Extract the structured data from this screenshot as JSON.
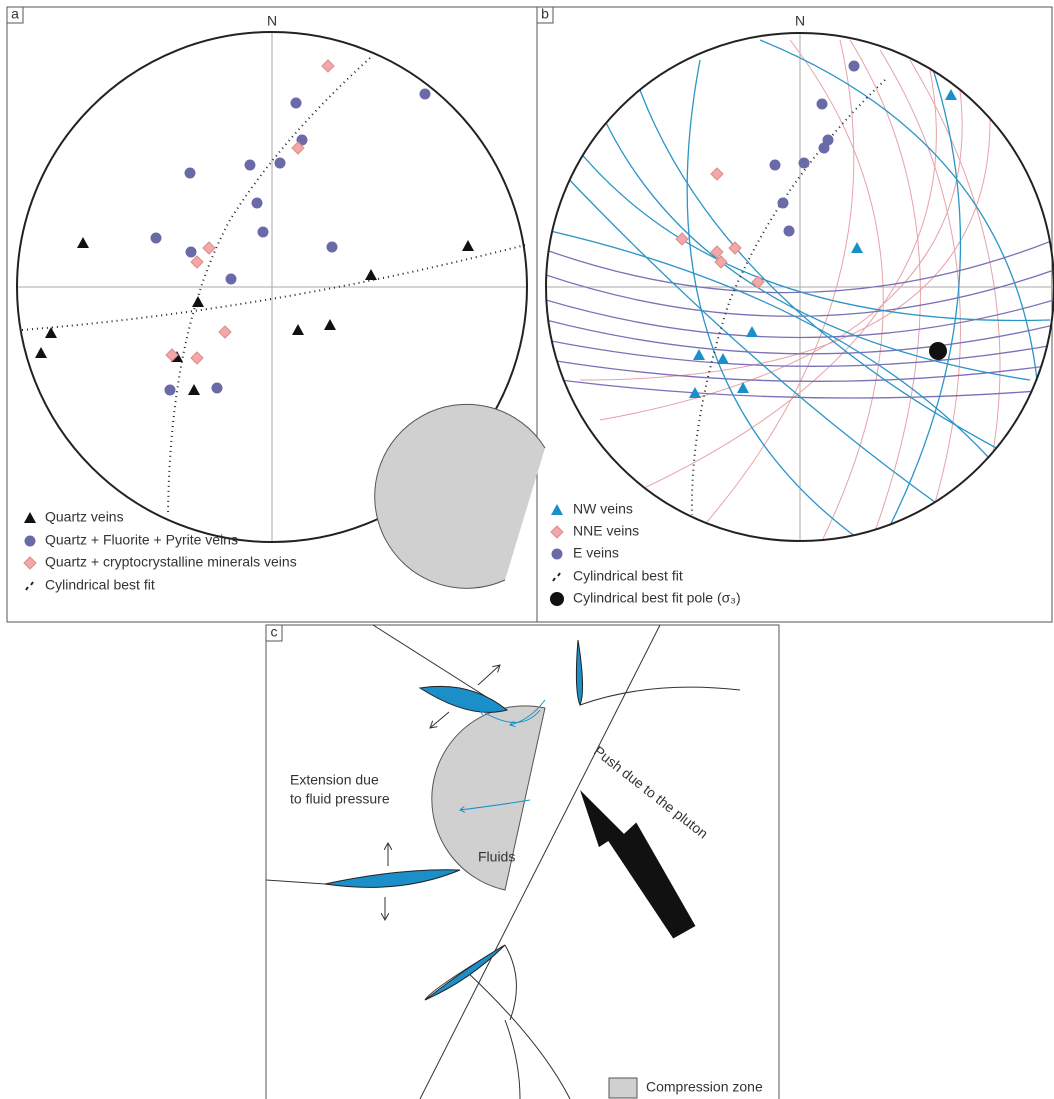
{
  "panel_a": {
    "label": "a",
    "north": "N",
    "legend": [
      "Quartz veins",
      "Quartz + Fluorite + Pyrite veins",
      "Quartz + cryptocrystalline minerals veins",
      "Cylindrical best fit"
    ]
  },
  "panel_b": {
    "label": "b",
    "north": "N",
    "legend": [
      "NW veins",
      "NNE veins",
      "E veins",
      "Cylindrical best fit",
      "Cylindrical best fit pole (σ₃)"
    ]
  },
  "panel_c": {
    "label": "c",
    "extension_line1": "Extension due",
    "extension_line2": "to fluid pressure",
    "fluids": "Fluids",
    "push": "Push due to the pluton",
    "legend": "Compression zone"
  }
}
